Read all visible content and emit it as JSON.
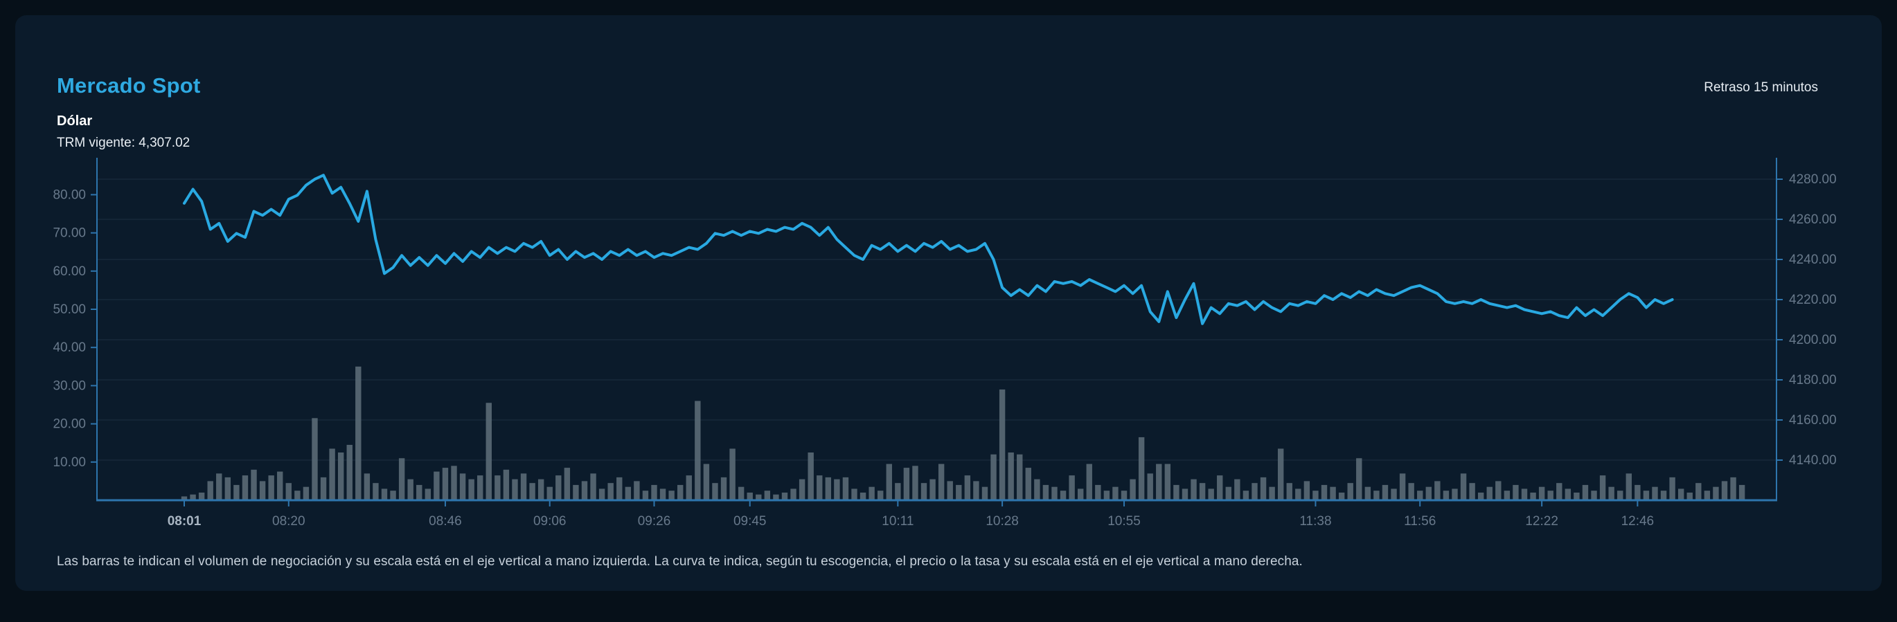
{
  "header": {
    "title": "Mercado Spot",
    "delay_badge": "Retraso 15 minutos",
    "instrument": "Dólar",
    "trm_line": "TRM vigente: 4,307.02"
  },
  "footer": {
    "description": "Las barras te indican el volumen de negociación y su escala está en el eje vertical a mano izquierda. La curva te indica, según tu escogencia, el precio o la tasa y su escala está en el eje vertical a mano derecha."
  },
  "colors": {
    "background": "#061019",
    "card": "#0B1B2B",
    "accent": "#2FA9E1",
    "line": "#29A9E2",
    "bar": "#5A6A76",
    "axis_line": "#2E75AD",
    "grid": "rgba(125,155,185,0.16)",
    "tick_label": "#68798B"
  },
  "chart_data": {
    "type": "combo: line (price, right axis) + bar (volume, left axis)",
    "title": "Mercado Spot - Dólar",
    "legend_position": "none",
    "grid": "horizontal, aligned to right axis",
    "left_axis": {
      "label": "volumen de negociación",
      "ticks": [
        "10.00",
        "20.00",
        "30.00",
        "40.00",
        "50.00",
        "60.00",
        "70.00",
        "80.00"
      ],
      "tick_values": [
        10,
        20,
        30,
        40,
        50,
        60,
        70,
        80
      ],
      "range": [
        0,
        90
      ]
    },
    "right_axis": {
      "label": "precio / tasa",
      "ticks": [
        "4280.00",
        "4260.00",
        "4240.00",
        "4220.00",
        "4200.00",
        "4180.00",
        "4160.00",
        "4140.00"
      ],
      "tick_values": [
        4280,
        4260,
        4240,
        4220,
        4200,
        4180,
        4160,
        4140
      ],
      "range": [
        4120,
        4290
      ]
    },
    "x_ticks": [
      {
        "label": "08:01",
        "index": 0,
        "bold": true
      },
      {
        "label": "08:20",
        "index": 12
      },
      {
        "label": "08:46",
        "index": 30
      },
      {
        "label": "09:06",
        "index": 42
      },
      {
        "label": "09:26",
        "index": 54
      },
      {
        "label": "09:45",
        "index": 65
      },
      {
        "label": "10:11",
        "index": 82
      },
      {
        "label": "10:28",
        "index": 94
      },
      {
        "label": "10:55",
        "index": 108
      },
      {
        "label": "11:38",
        "index": 130
      },
      {
        "label": "11:56",
        "index": 142
      },
      {
        "label": "12:22",
        "index": 156
      },
      {
        "label": "12:46",
        "index": 167
      }
    ],
    "series": [
      {
        "name": "precio",
        "type": "line",
        "axis": "right",
        "color": "#29A9E2",
        "values": [
          4268,
          4275,
          4269,
          4255,
          4258,
          4249,
          4253,
          4251,
          4264,
          4262,
          4265,
          4262,
          4270,
          4272,
          4277,
          4280,
          4282,
          4273,
          4276,
          4268,
          4259,
          4274,
          4250,
          4233,
          4236,
          4242,
          4237,
          4241,
          4237,
          4242,
          4238,
          4243,
          4239,
          4244,
          4241,
          4246,
          4243,
          4246,
          4244,
          4248,
          4246,
          4249,
          4242,
          4245,
          4240,
          4244,
          4241,
          4243,
          4240,
          4244,
          4242,
          4245,
          4242,
          4244,
          4241,
          4243,
          4242,
          4244,
          4246,
          4245,
          4248,
          4253,
          4252,
          4254,
          4252,
          4254,
          4253,
          4255,
          4254,
          4256,
          4255,
          4258,
          4256,
          4252,
          4256,
          4250,
          4246,
          4242,
          4240,
          4247,
          4245,
          4248,
          4244,
          4247,
          4244,
          4248,
          4246,
          4249,
          4245,
          4247,
          4244,
          4245,
          4248,
          4240,
          4226,
          4222,
          4225,
          4222,
          4227,
          4224,
          4229,
          4228,
          4229,
          4227,
          4230,
          4228,
          4226,
          4224,
          4227,
          4223,
          4227,
          4214,
          4209,
          4224,
          4211,
          4220,
          4228,
          4208,
          4216,
          4213,
          4218,
          4217,
          4219,
          4215,
          4219,
          4216,
          4214,
          4218,
          4217,
          4219,
          4218,
          4222,
          4220,
          4223,
          4221,
          4224,
          4222,
          4225,
          4223,
          4222,
          4224,
          4226,
          4227,
          4225,
          4223,
          4219,
          4218,
          4219,
          4218,
          4220,
          4218,
          4217,
          4216,
          4217,
          4215,
          4214,
          4213,
          4214,
          4212,
          4211,
          4216,
          4212,
          4215,
          4212,
          4216,
          4220,
          4223,
          4221,
          4216,
          4220,
          4218,
          4220
        ]
      },
      {
        "name": "volumen",
        "type": "bar",
        "axis": "left",
        "color": "#5A6A76",
        "values": [
          1,
          1.5,
          2,
          5,
          7,
          6,
          4,
          6.5,
          8,
          5,
          6.5,
          7.5,
          4.5,
          2.5,
          3.5,
          21.5,
          6,
          13.5,
          12.5,
          14.5,
          35,
          7,
          4.5,
          3,
          2.5,
          11,
          5.5,
          4,
          3,
          7.5,
          8.5,
          9,
          7,
          5.5,
          6.5,
          25.5,
          6.5,
          8,
          5.5,
          7,
          4.5,
          5.5,
          3.5,
          6.5,
          8.5,
          4,
          5,
          7,
          3,
          4.5,
          6,
          3.5,
          5,
          2.5,
          4,
          3,
          2.5,
          4,
          6.5,
          26,
          9.5,
          4.5,
          6,
          13.5,
          3.5,
          2,
          1.5,
          2.5,
          1.5,
          2,
          3,
          5.5,
          12.5,
          6.5,
          6,
          5.5,
          6,
          3,
          2,
          3.5,
          2.5,
          9.5,
          4.5,
          8.5,
          9,
          4.5,
          5.5,
          9.5,
          5,
          4,
          6.5,
          5,
          3.5,
          12,
          29,
          12.5,
          12,
          8.5,
          5.5,
          4,
          3.5,
          2.5,
          6.5,
          3,
          9.5,
          4,
          2.5,
          3.5,
          2.5,
          5.5,
          16.5,
          7,
          9.5,
          9.5,
          4,
          3,
          5.5,
          4.5,
          3,
          6.5,
          3.5,
          5.5,
          2.5,
          4.5,
          6,
          3.5,
          13.5,
          4.5,
          3,
          5,
          2.5,
          4,
          3.5,
          2,
          4.5,
          11,
          3.5,
          2.5,
          4,
          3,
          7,
          4.5,
          2.5,
          3.5,
          5,
          2.5,
          3,
          7,
          4.5,
          2,
          3.5,
          5,
          2.5,
          4,
          3,
          2,
          3.5,
          2.5,
          4.5,
          3,
          2,
          4,
          2.5,
          6.5,
          3.5,
          2.5,
          7,
          4,
          2.5,
          3.5,
          2.5,
          6,
          3,
          2,
          4.5,
          2.5,
          3.5,
          5,
          6,
          4
        ]
      }
    ]
  }
}
